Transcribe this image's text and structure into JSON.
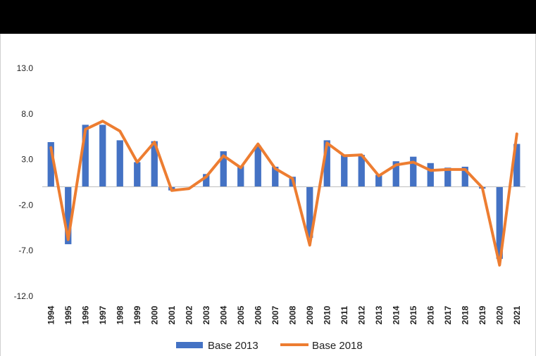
{
  "chart_data": {
    "type": "bar+line",
    "title": "",
    "xlabel": "",
    "ylabel": "",
    "ylim": [
      -12.0,
      13.0
    ],
    "yticks": [
      "13.0",
      "8.0",
      "3.0",
      "-2.0",
      "-7.0",
      "-12.0"
    ],
    "ytick_values": [
      13,
      8,
      3,
      -2,
      -7,
      -12
    ],
    "categories": [
      "1994",
      "1995",
      "1996",
      "1997",
      "1998",
      "1999",
      "2000",
      "2001",
      "2002",
      "2003",
      "2004",
      "2005",
      "2006",
      "2007",
      "2008",
      "2009",
      "2010",
      "2011",
      "2012",
      "2013",
      "2014",
      "2015",
      "2016",
      "2017",
      "2018",
      "2019",
      "2020",
      "2021"
    ],
    "series": [
      {
        "name": "Base 2013",
        "type": "bar",
        "color": "#4472c4",
        "values": [
          4.9,
          -6.3,
          6.8,
          6.8,
          5.1,
          2.7,
          5.0,
          -0.4,
          0.0,
          1.4,
          3.9,
          2.3,
          4.5,
          2.2,
          1.1,
          -5.6,
          5.1,
          3.5,
          3.5,
          1.3,
          2.8,
          3.3,
          2.6,
          2.1,
          2.2,
          -0.2,
          -7.9,
          4.7
        ]
      },
      {
        "name": "Base 2018",
        "type": "line",
        "color": "#ed7d31",
        "values": [
          4.3,
          -5.8,
          6.3,
          7.2,
          6.1,
          2.7,
          4.9,
          -0.4,
          -0.2,
          1.1,
          3.4,
          2.1,
          4.7,
          2.0,
          0.9,
          -6.4,
          4.8,
          3.4,
          3.5,
          1.2,
          2.4,
          2.7,
          1.8,
          1.9,
          1.9,
          -0.1,
          -8.6,
          5.8
        ]
      }
    ],
    "legend_position": "bottom-center"
  }
}
